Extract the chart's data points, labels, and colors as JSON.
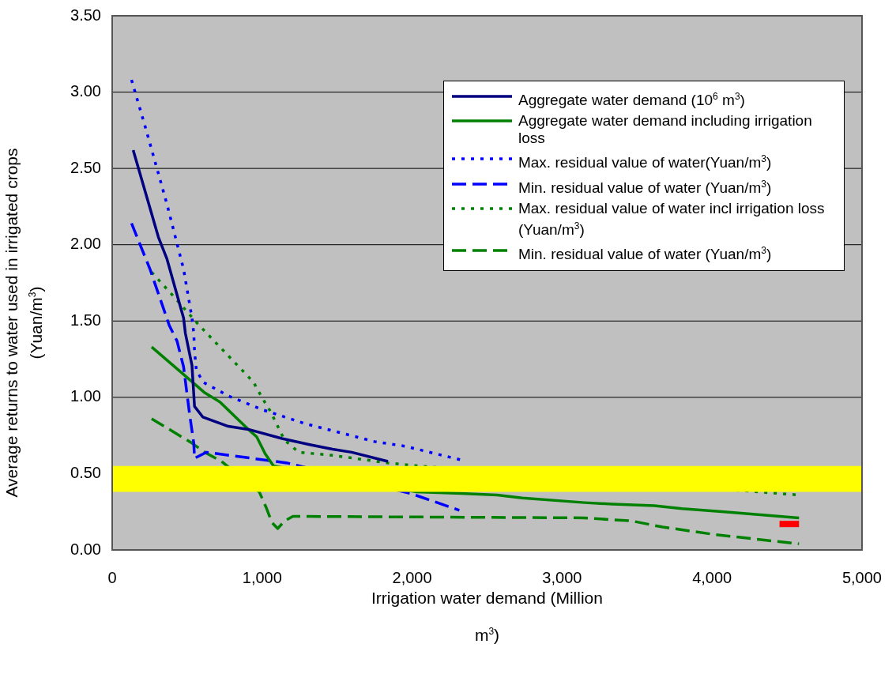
{
  "chart_data": {
    "type": "line",
    "xlabel": "Irrigation water demand (Million m$^{3}$)",
    "ylabel": "Average returns to water used in irrigated crops (Yuan/m$^{3}$)",
    "xlim": [
      0,
      5000
    ],
    "xticks": [
      0,
      {
        "value": 1000,
        "label": "1,000"
      },
      {
        "value": 2000,
        "label": "2,000"
      },
      {
        "value": 3000,
        "label": "3,000"
      },
      {
        "value": 4000,
        "label": "4,000"
      },
      {
        "value": 5000,
        "label": "5,000"
      }
    ],
    "ylim": [
      0,
      3.5
    ],
    "yticks": [
      {
        "value": 0,
        "label": "0.00"
      },
      {
        "value": 0.5,
        "label": "0.50"
      },
      {
        "value": 1,
        "label": "1.00"
      },
      {
        "value": 1.5,
        "label": "1.50"
      },
      {
        "value": 2,
        "label": "2.00"
      },
      {
        "value": 2.5,
        "label": "2.50"
      },
      {
        "value": 3,
        "label": "3.00"
      },
      {
        "value": 3.5,
        "label": "3.50"
      }
    ],
    "grid": "y",
    "legend": "top right",
    "marker": "none",
    "bands": [
      {
        "axis": "y",
        "from": 0.38,
        "to": 0.55,
        "color": "#ffff00"
      }
    ],
    "series": [
      {
        "name": "Aggregate water demand (10$^{6}$ m$^{3}$)",
        "color": "#000080",
        "line_style": "solid",
        "x": [
          140,
          308,
          364,
          476,
          488,
          532,
          549,
          605,
          774,
          908,
          1132,
          1317,
          1469,
          1597,
          1839
        ],
        "values": [
          2.62,
          2.05,
          1.91,
          1.52,
          1.42,
          1.21,
          0.94,
          0.87,
          0.81,
          0.79,
          0.73,
          0.69,
          0.66,
          0.64,
          0.58
        ]
      },
      {
        "name": "Aggregate water demand including irrigation loss",
        "color": "#008000",
        "line_style": "solid",
        "x": [
          263,
          476,
          617,
          718,
          908,
          964,
          1020,
          1076,
          2029,
          2326,
          2567,
          2735,
          3150,
          3335,
          3615,
          3800,
          4081,
          4580
        ],
        "values": [
          1.33,
          1.15,
          1.03,
          0.97,
          0.79,
          0.74,
          0.63,
          0.55,
          0.38,
          0.37,
          0.36,
          0.34,
          0.31,
          0.3,
          0.29,
          0.27,
          0.25,
          0.21
        ]
      },
      {
        "name": "Max. residual value of water(Yuan/m$^{3}$)",
        "color": "#0000ff",
        "line_style": "dotted",
        "x": [
          129,
          224,
          364,
          476,
          532,
          544,
          549,
          561,
          605,
          774,
          998,
          1278,
          1749,
          1951,
          2326
        ],
        "values": [
          3.08,
          2.76,
          2.27,
          1.84,
          1.52,
          1.42,
          1.3,
          1.18,
          1.1,
          1.01,
          0.92,
          0.83,
          0.71,
          0.68,
          0.59
        ]
      },
      {
        "name": "Min. residual value of water (Yuan/m$^{3}$)",
        "color": "#0000ff",
        "line_style": "dashed",
        "x": [
          129,
          252,
          381,
          432,
          476,
          516,
          544,
          549,
          628,
          1166,
          1990,
          2315
        ],
        "values": [
          2.14,
          1.84,
          1.47,
          1.37,
          1.2,
          0.89,
          0.7,
          0.6,
          0.64,
          0.57,
          0.37,
          0.26
        ]
      },
      {
        "name": "Max. residual value of water incl irrigation loss (Yuan/m$^{3}$)",
        "color": "#008000",
        "line_style": "dotted",
        "x": [
          263,
          420,
          572,
          718,
          796,
          942,
          998,
          1054,
          1104,
          1149,
          1244,
          1469,
          1839,
          2046,
          4580
        ],
        "values": [
          1.82,
          1.65,
          1.48,
          1.33,
          1.25,
          1.1,
          1.0,
          0.91,
          0.81,
          0.72,
          0.64,
          0.62,
          0.57,
          0.55,
          0.36
        ]
      },
      {
        "name": "Min. residual value of water (Yuan/m$^{3}$)",
        "color": "#008000",
        "line_style": "dashed",
        "x": [
          263,
          532,
          617,
          729,
          981,
          1026,
          1065,
          1104,
          1149,
          1205,
          3150,
          3464,
          3671,
          4025,
          4580
        ],
        "values": [
          0.86,
          0.7,
          0.64,
          0.58,
          0.38,
          0.28,
          0.18,
          0.14,
          0.19,
          0.22,
          0.21,
          0.19,
          0.15,
          0.1,
          0.04
        ]
      },
      {
        "color": "#ff0000",
        "line_style": "solid",
        "x": [
          4450,
          4580
        ],
        "values": [
          0.17,
          0.17
        ]
      }
    ]
  }
}
